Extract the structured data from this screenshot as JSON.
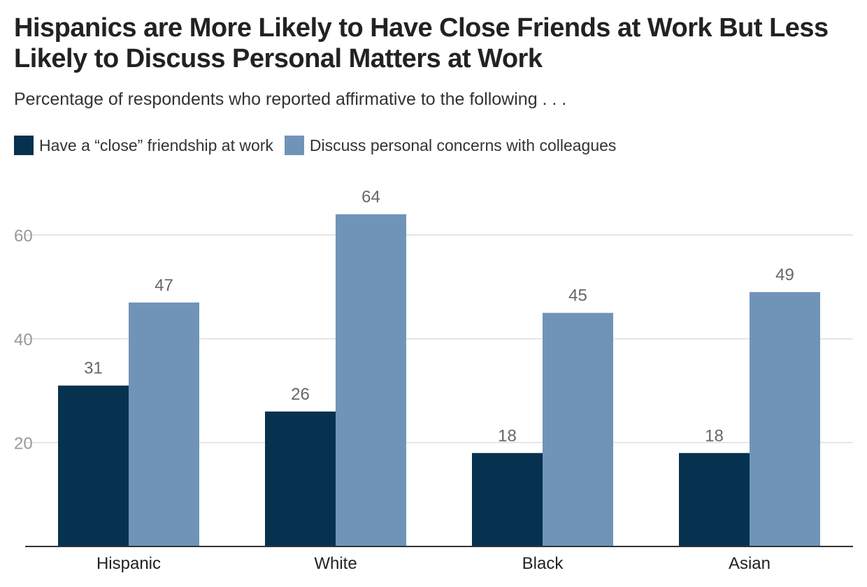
{
  "chart_data": {
    "type": "bar",
    "title": "Hispanics are More Likely to Have Close Friends at Work But Less Likely to Discuss Personal Matters at Work",
    "subtitle": "Percentage of respondents who reported affirmative to the following . . .",
    "categories": [
      "Hispanic",
      "White",
      "Black",
      "Asian"
    ],
    "series": [
      {
        "name": "Have a “close” friendship at work",
        "values": [
          31,
          26,
          18,
          18
        ],
        "color": "#06324f"
      },
      {
        "name": "Discuss personal concerns with colleagues",
        "values": [
          47,
          64,
          45,
          49
        ],
        "color": "#7094b8"
      }
    ],
    "xlabel": "",
    "ylabel": "",
    "ylim": [
      0,
      70
    ],
    "yticks": [
      20,
      40,
      60
    ],
    "grid": true,
    "legend_position": "top-left"
  }
}
